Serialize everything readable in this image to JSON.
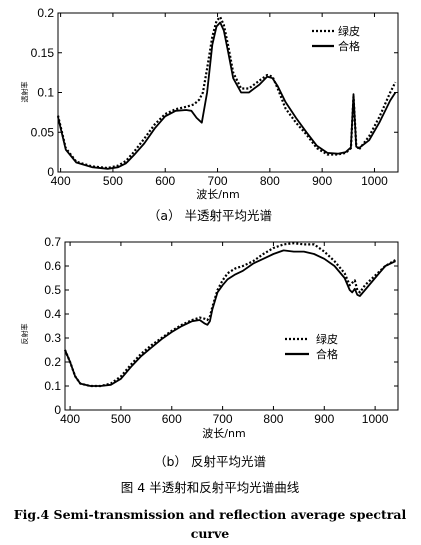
{
  "chart_data": [
    {
      "type": "line",
      "xlabel": "波长/nm",
      "ylabel": "透射率",
      "xlim": [
        395,
        1045
      ],
      "ylim": [
        0,
        0.2
      ],
      "xticks": [
        "400",
        "500",
        "600",
        "700",
        "800",
        "900",
        "1000"
      ],
      "yticks": [
        "0",
        "0.05",
        "0.1",
        "0.15",
        "0.2"
      ],
      "caption": "（a）  半透射平均光谱",
      "grid": false,
      "legend_position": "top-right",
      "series": [
        {
          "name": "绿皮",
          "style": "dotted",
          "x": [
            395,
            410,
            430,
            460,
            490,
            510,
            525,
            540,
            560,
            580,
            600,
            620,
            640,
            655,
            665,
            672,
            680,
            690,
            698,
            705,
            712,
            720,
            730,
            745,
            760,
            780,
            795,
            805,
            815,
            830,
            850,
            870,
            890,
            910,
            930,
            945,
            955,
            960,
            965,
            970,
            990,
            1010,
            1030,
            1040
          ],
          "y": [
            0.071,
            0.03,
            0.013,
            0.007,
            0.005,
            0.008,
            0.014,
            0.025,
            0.042,
            0.06,
            0.073,
            0.079,
            0.082,
            0.085,
            0.091,
            0.1,
            0.13,
            0.17,
            0.19,
            0.195,
            0.185,
            0.16,
            0.125,
            0.105,
            0.105,
            0.115,
            0.122,
            0.12,
            0.105,
            0.08,
            0.062,
            0.047,
            0.03,
            0.022,
            0.022,
            0.024,
            0.03,
            0.095,
            0.035,
            0.028,
            0.045,
            0.07,
            0.1,
            0.113
          ]
        },
        {
          "name": "合格",
          "style": "solid",
          "x": [
            395,
            410,
            430,
            460,
            490,
            510,
            525,
            540,
            560,
            580,
            600,
            620,
            640,
            650,
            660,
            670,
            680,
            690,
            698,
            705,
            712,
            720,
            730,
            745,
            760,
            780,
            795,
            805,
            815,
            830,
            850,
            870,
            890,
            910,
            930,
            945,
            955,
            960,
            965,
            970,
            990,
            1010,
            1030,
            1040
          ],
          "y": [
            0.069,
            0.028,
            0.012,
            0.006,
            0.004,
            0.006,
            0.011,
            0.021,
            0.036,
            0.055,
            0.07,
            0.077,
            0.078,
            0.077,
            0.068,
            0.062,
            0.1,
            0.16,
            0.183,
            0.188,
            0.178,
            0.152,
            0.118,
            0.1,
            0.1,
            0.11,
            0.12,
            0.118,
            0.108,
            0.088,
            0.068,
            0.05,
            0.033,
            0.024,
            0.023,
            0.025,
            0.031,
            0.098,
            0.032,
            0.03,
            0.04,
            0.063,
            0.09,
            0.1
          ]
        }
      ]
    },
    {
      "type": "line",
      "xlabel": "波长/nm",
      "ylabel": "反射率",
      "xlim": [
        390,
        1045
      ],
      "ylim": [
        0,
        0.7
      ],
      "xticks": [
        "400",
        "500",
        "600",
        "700",
        "800",
        "900",
        "1000"
      ],
      "yticks": [
        "0",
        "0.1",
        "0.2",
        "0.3",
        "0.4",
        "0.5",
        "0.6",
        "0.7"
      ],
      "caption": "（b）  反射平均光谱",
      "grid": false,
      "legend_position": "center-right",
      "series": [
        {
          "name": "绿皮",
          "style": "dotted",
          "x": [
            390,
            400,
            410,
            420,
            440,
            460,
            480,
            500,
            520,
            540,
            560,
            580,
            600,
            620,
            640,
            655,
            665,
            670,
            675,
            680,
            690,
            700,
            710,
            725,
            740,
            760,
            780,
            800,
            820,
            840,
            860,
            880,
            900,
            920,
            940,
            950,
            955,
            960,
            965,
            970,
            980,
            1000,
            1020,
            1040
          ],
          "y": [
            0.25,
            0.2,
            0.14,
            0.11,
            0.1,
            0.1,
            0.11,
            0.14,
            0.19,
            0.235,
            0.27,
            0.3,
            0.33,
            0.355,
            0.375,
            0.385,
            0.38,
            0.375,
            0.39,
            0.43,
            0.5,
            0.54,
            0.57,
            0.59,
            0.6,
            0.62,
            0.65,
            0.675,
            0.69,
            0.695,
            0.69,
            0.69,
            0.66,
            0.62,
            0.57,
            0.52,
            0.53,
            0.54,
            0.5,
            0.49,
            0.52,
            0.56,
            0.6,
            0.625
          ]
        },
        {
          "name": "合格",
          "style": "solid",
          "x": [
            390,
            400,
            410,
            420,
            440,
            460,
            480,
            500,
            520,
            540,
            560,
            580,
            600,
            620,
            640,
            655,
            665,
            670,
            675,
            680,
            690,
            700,
            710,
            725,
            740,
            760,
            780,
            800,
            820,
            840,
            860,
            880,
            900,
            920,
            940,
            950,
            955,
            960,
            965,
            970,
            980,
            1000,
            1020,
            1040
          ],
          "y": [
            0.25,
            0.2,
            0.14,
            0.11,
            0.1,
            0.1,
            0.105,
            0.13,
            0.18,
            0.225,
            0.26,
            0.295,
            0.325,
            0.35,
            0.37,
            0.375,
            0.36,
            0.355,
            0.37,
            0.42,
            0.49,
            0.52,
            0.545,
            0.565,
            0.58,
            0.61,
            0.63,
            0.65,
            0.665,
            0.66,
            0.66,
            0.65,
            0.63,
            0.6,
            0.55,
            0.5,
            0.49,
            0.505,
            0.48,
            0.475,
            0.5,
            0.55,
            0.6,
            0.62
          ]
        }
      ]
    }
  ],
  "figure_caption": "图 4  半透射和反射平均光谱曲线",
  "english_caption_line1": "Fig.4  Semi-transmission  and  reflection  average  spectral",
  "english_caption_line2": "curve"
}
